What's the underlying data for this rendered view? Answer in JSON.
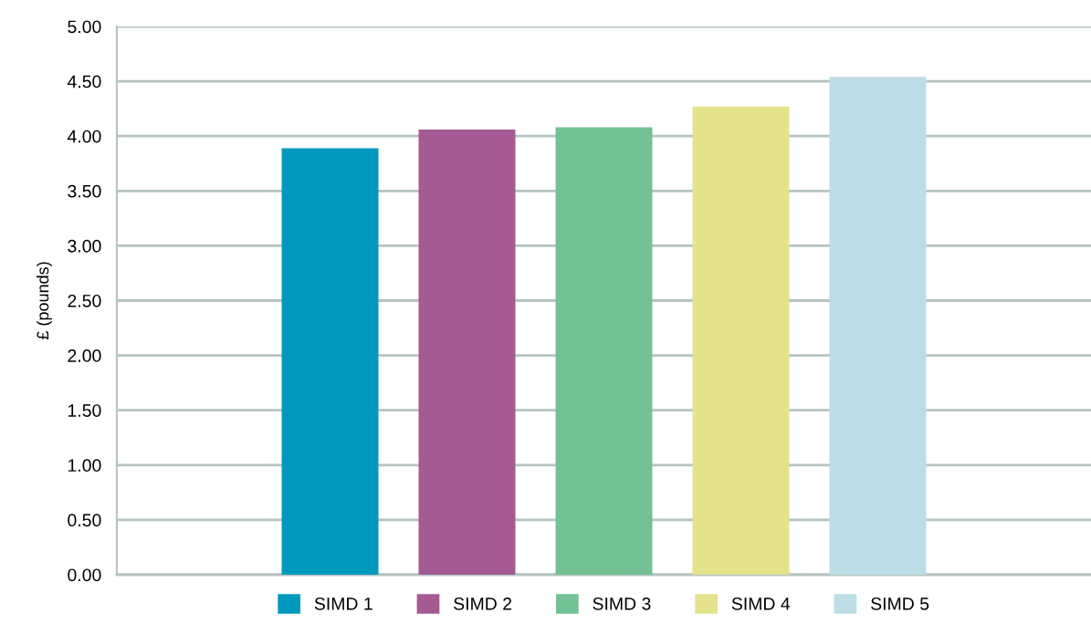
{
  "chart_data": {
    "type": "bar",
    "ylabel": "£ (pounds)",
    "categories": [
      null
    ],
    "series": [
      {
        "name": "SIMD 1",
        "color": "#0099bd",
        "values": [
          3.89
        ]
      },
      {
        "name": "SIMD 2",
        "color": "#a55a94",
        "values": [
          4.06
        ]
      },
      {
        "name": "SIMD 3",
        "color": "#74c195",
        "values": [
          4.08
        ]
      },
      {
        "name": "SIMD 4",
        "color": "#e4e38c",
        "values": [
          4.27
        ]
      },
      {
        "name": "SIMD 5",
        "color": "#bcdde5",
        "values": [
          4.54
        ]
      }
    ],
    "ylim": [
      0,
      5
    ],
    "yticks": [
      {
        "value": 0,
        "label": "0.00"
      },
      {
        "value": 0.5,
        "label": "0.50"
      },
      {
        "value": 1,
        "label": "1.00"
      },
      {
        "value": 1.5,
        "label": "1.50"
      },
      {
        "value": 2,
        "label": "2.00"
      },
      {
        "value": 2.5,
        "label": "2.50"
      },
      {
        "value": 3,
        "label": "3.00"
      },
      {
        "value": 3.5,
        "label": "3.50"
      },
      {
        "value": 4,
        "label": "4.00"
      },
      {
        "value": 4.5,
        "label": "4.50"
      },
      {
        "value": 5,
        "label": "5.00"
      }
    ],
    "grid": "y",
    "legend": "bottom"
  }
}
